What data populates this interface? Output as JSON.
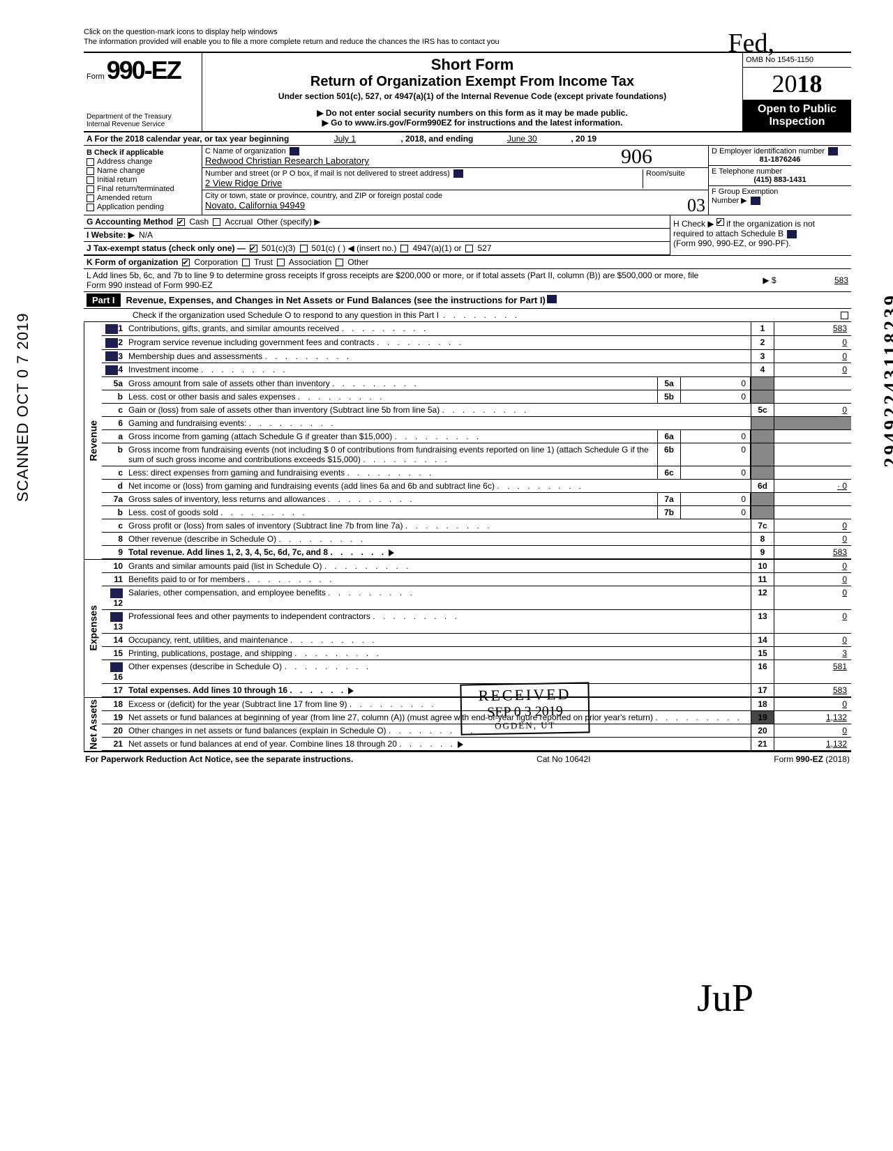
{
  "handwriting": {
    "fed": "Fed,",
    "sig": "JuP",
    "stamp906": "906",
    "stamp03": "03"
  },
  "side": {
    "scanned": "SCANNED OCT 0 7 2019",
    "docnum": "29492243118239"
  },
  "top": {
    "note1": "Click on the question-mark icons to display help windows",
    "note2": "The information provided will enable you to file a more complete return and reduce the chances the IRS has to contact you"
  },
  "header": {
    "form_prefix": "Form",
    "form_no": "990-EZ",
    "dept1": "Department of the Treasury",
    "dept2": "Internal Revenue Service",
    "shortform": "Short Form",
    "title": "Return of Organization Exempt From Income Tax",
    "subtitle": "Under section 501(c), 527, or 4947(a)(1) of the Internal Revenue Code (except private foundations)",
    "warn": "▶ Do not enter social security numbers on this form as it may be made public.",
    "link": "▶ Go to www.irs.gov/Form990EZ for instructions and the latest information.",
    "omb": "OMB No 1545-1150",
    "year_prefix": "20",
    "year_bold": "18",
    "open1": "Open to Public",
    "open2": "Inspection"
  },
  "rowA": {
    "label": "A For the 2018 calendar year, or tax year beginning",
    "begin": "July 1",
    "mid": ", 2018, and ending",
    "end": "June 30",
    "year": ", 20  19"
  },
  "boxB": {
    "title": "B  Check if applicable",
    "items": [
      "Address change",
      "Name change",
      "Initial return",
      "Final return/terminated",
      "Amended return",
      "Application pending"
    ]
  },
  "boxC": {
    "label_name": "C  Name of organization",
    "name": "Redwood Christian Research Laboratory",
    "label_street": "Number and street (or P O  box, if mail is not delivered to street address)",
    "room": "Room/suite",
    "street": "2 View Ridge Drive",
    "label_city": "City or town, state or province, country, and ZIP or foreign postal code",
    "city": "Novato, California 94949"
  },
  "boxD": {
    "label": "D Employer identification number",
    "val": "81-1876246"
  },
  "boxE": {
    "label": "E Telephone number",
    "val": "(415) 883-1431"
  },
  "boxF": {
    "label": "F Group Exemption",
    "label2": "Number ▶"
  },
  "rowG": {
    "label": "G  Accounting Method",
    "cash": "Cash",
    "accrual": "Accrual",
    "other": "Other (specify) ▶"
  },
  "rowH": {
    "text1": "H Check ▶",
    "text2": "if the organization is not",
    "text3": "required to attach Schedule B",
    "text4": "(Form 990, 990-EZ, or 990-PF)."
  },
  "rowI": {
    "label": "I  Website: ▶",
    "val": "N/A"
  },
  "rowJ": {
    "label": "J  Tax-exempt status (check only one) —",
    "c3": "501(c)(3)",
    "c": "501(c) (         ) ◀ (insert no.)",
    "a1": "4947(a)(1) or",
    "s527": "527"
  },
  "rowK": {
    "label": "K  Form of organization",
    "corp": "Corporation",
    "trust": "Trust",
    "assoc": "Association",
    "other": "Other"
  },
  "rowL": {
    "text": "L  Add lines 5b, 6c, and 7b to line 9 to determine gross receipts  If gross receipts are $200,000 or more, or if total assets (Part II, column (B)) are $500,000 or more, file Form 990 instead of Form 990-EZ",
    "arrow": "▶  $",
    "val": "583"
  },
  "part1": {
    "label": "Part I",
    "title": "Revenue, Expenses, and Changes in Net Assets or Fund Balances (see the instructions for Part I)",
    "check": "Check if the organization used Schedule O to respond to any question in this Part I"
  },
  "sections": {
    "revenue": "Revenue",
    "expenses": "Expenses",
    "netassets": "Net Assets"
  },
  "lines": [
    {
      "n": "1",
      "d": "Contributions, gifts, grants, and similar amounts received",
      "rn": "1",
      "rv": "583",
      "help": true
    },
    {
      "n": "2",
      "d": "Program service revenue including government fees and contracts",
      "rn": "2",
      "rv": "0",
      "help": true
    },
    {
      "n": "3",
      "d": "Membership dues and assessments",
      "rn": "3",
      "rv": "0",
      "help": true
    },
    {
      "n": "4",
      "d": "Investment income",
      "rn": "4",
      "rv": "0",
      "help": true
    },
    {
      "n": "5a",
      "d": "Gross amount from sale of assets other than inventory",
      "mn": "5a",
      "mv": "0",
      "shadeR": true
    },
    {
      "n": "b",
      "d": "Less. cost or other basis and sales expenses",
      "mn": "5b",
      "mv": "0",
      "shadeR": true
    },
    {
      "n": "c",
      "d": "Gain or (loss) from sale of assets other than inventory (Subtract line 5b from line 5a)",
      "rn": "5c",
      "rv": "0"
    },
    {
      "n": "6",
      "d": "Gaming and fundraising events:",
      "shadeR": true,
      "shadeRR": true
    },
    {
      "n": "a",
      "d": "Gross income from gaming (attach Schedule G if greater than $15,000)",
      "mn": "6a",
      "mv": "0",
      "shadeR": true
    },
    {
      "n": "b",
      "d": "Gross income from fundraising events (not including  $              0 of contributions from fundraising events reported on line 1) (attach Schedule G if the sum of such gross income and contributions exceeds $15,000)",
      "mn": "6b",
      "mv": "0",
      "shadeR": true
    },
    {
      "n": "c",
      "d": "Less: direct expenses from gaming and fundraising events",
      "mn": "6c",
      "mv": "0",
      "shadeR": true
    },
    {
      "n": "d",
      "d": "Net income or (loss) from gaming and fundraising events (add lines 6a and 6b and subtract line 6c)",
      "rn": "6d",
      "rv": "· 0"
    },
    {
      "n": "7a",
      "d": "Gross sales of inventory, less returns and allowances",
      "mn": "7a",
      "mv": "0",
      "shadeR": true
    },
    {
      "n": "b",
      "d": "Less. cost of goods sold",
      "mn": "7b",
      "mv": "0",
      "shadeR": true
    },
    {
      "n": "c",
      "d": "Gross profit or (loss) from sales of inventory (Subtract line 7b from line 7a)",
      "rn": "7c",
      "rv": "0"
    },
    {
      "n": "8",
      "d": "Other revenue (describe in Schedule O)",
      "rn": "8",
      "rv": "0"
    },
    {
      "n": "9",
      "d": "Total revenue. Add lines 1, 2, 3, 4, 5c, 6d, 7c, and 8",
      "rn": "9",
      "rv": "583",
      "bold": true,
      "arrow": true
    }
  ],
  "exp_lines": [
    {
      "n": "10",
      "d": "Grants and similar amounts paid (list in Schedule O)",
      "rn": "10",
      "rv": "0"
    },
    {
      "n": "11",
      "d": "Benefits paid to or for members",
      "rn": "11",
      "rv": "0"
    },
    {
      "n": "12",
      "d": "Salaries, other compensation, and employee benefits",
      "rn": "12",
      "rv": "0",
      "help": true
    },
    {
      "n": "13",
      "d": "Professional fees and other payments to independent contractors",
      "rn": "13",
      "rv": "0",
      "help": true
    },
    {
      "n": "14",
      "d": "Occupancy, rent, utilities, and maintenance",
      "rn": "14",
      "rv": "0"
    },
    {
      "n": "15",
      "d": "Printing, publications, postage, and shipping",
      "rn": "15",
      "rv": "3"
    },
    {
      "n": "16",
      "d": "Other expenses (describe in Schedule O)",
      "rn": "16",
      "rv": "581",
      "help": true
    },
    {
      "n": "17",
      "d": "Total expenses. Add lines 10 through 16",
      "rn": "17",
      "rv": "583",
      "bold": true,
      "arrow": true
    }
  ],
  "na_lines": [
    {
      "n": "18",
      "d": "Excess or (deficit) for the year (Subtract line 17 from line 9)",
      "rn": "18",
      "rv": "0"
    },
    {
      "n": "19",
      "d": "Net assets or fund balances at beginning of year (from line 27, column (A)) (must agree with end-of-year figure reported on prior year's return)",
      "rn": "19",
      "rv": "1,132",
      "shadeN": true
    },
    {
      "n": "20",
      "d": "Other changes in net assets or fund balances (explain in Schedule O)",
      "rn": "20",
      "rv": "0"
    },
    {
      "n": "21",
      "d": "Net assets or fund balances at end of year. Combine lines 18 through 20",
      "rn": "21",
      "rv": "1,132",
      "arrow": true
    }
  ],
  "stamp": {
    "received": "RECEIVED",
    "date": "SEP  0 3  2019",
    "ogden": "OGDEN, UT"
  },
  "footer": {
    "left": "For Paperwork Reduction Act Notice, see the separate instructions.",
    "mid": "Cat No  10642I",
    "right": "Form 990-EZ (2018)"
  }
}
